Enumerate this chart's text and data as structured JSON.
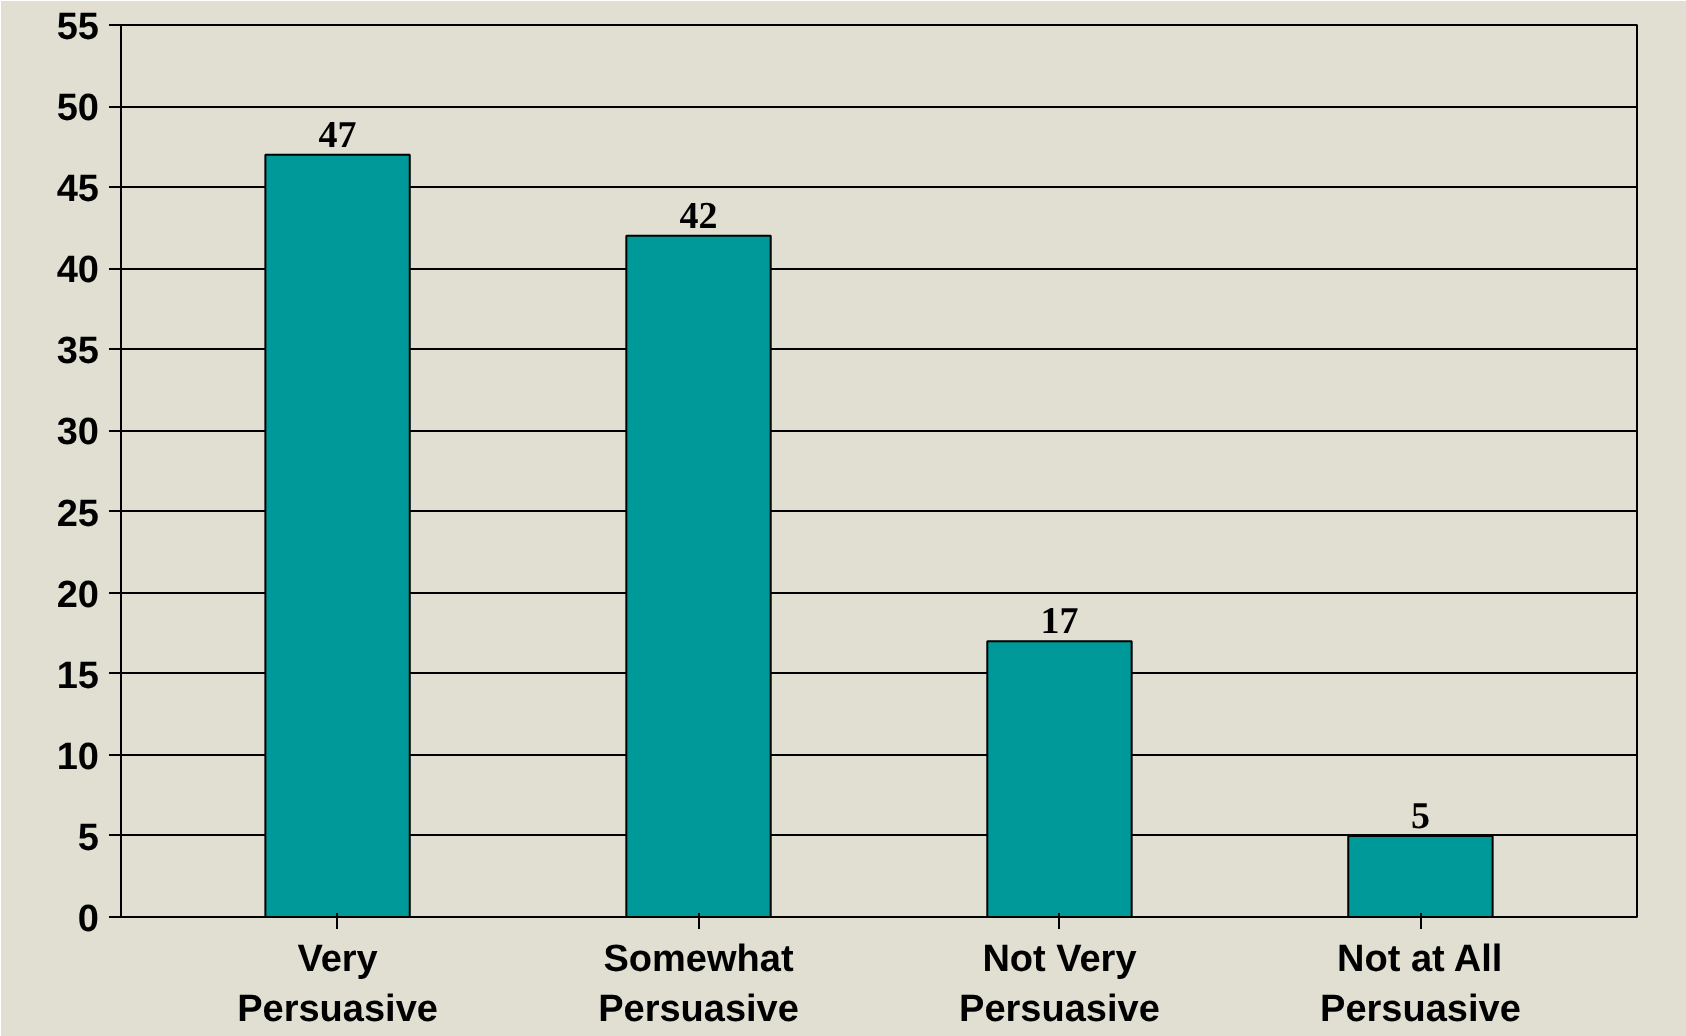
{
  "chart_data": {
    "type": "bar",
    "categories": [
      "Very\nPersuasive",
      "Somewhat\nPersuasive",
      "Not Very\nPersuasive",
      "Not at All\nPersuasive"
    ],
    "values": [
      47,
      42,
      17,
      5
    ],
    "color": "#009999",
    "ylim": [
      0,
      55
    ],
    "yticks": [
      0,
      5,
      10,
      15,
      20,
      25,
      30,
      35,
      40,
      45,
      50,
      55
    ],
    "grid": "y",
    "data_labels": true
  }
}
